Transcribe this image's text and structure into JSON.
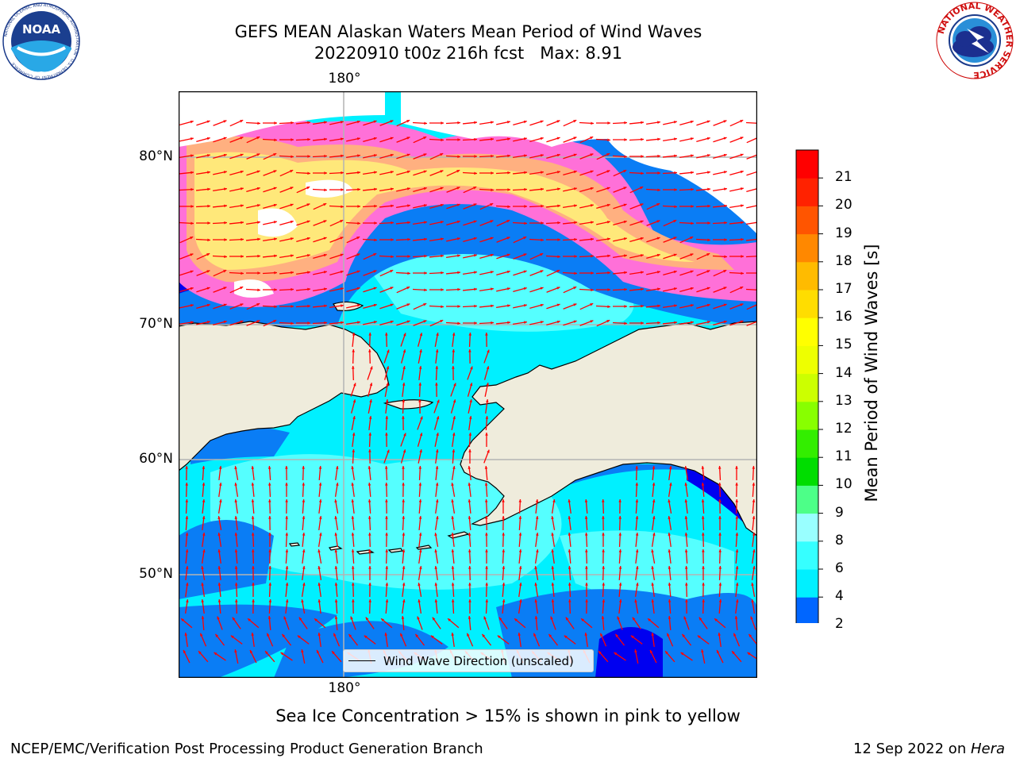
{
  "header": {
    "title_line1": "GEFS MEAN Alaskan Waters Mean Period of Wind Waves",
    "title_line2": "20220910 t00z 216h fcst   Max: 8.91"
  },
  "logos": {
    "noaa_text": "NOAA",
    "noaa_ring_text": "NATIONAL OCEANIC AND ATMOSPHERIC ADMINISTRATION · U.S. DEPARTMENT OF COMMERCE",
    "nws_ring_text": "NATIONAL WEATHER SERVICE"
  },
  "map": {
    "lon_labels": [
      "180°",
      "180°"
    ],
    "lat_labels": [
      "80°N",
      "70°N",
      "60°N",
      "50°N"
    ],
    "legend_label": "Wind Wave Direction (unscaled)",
    "colors": {
      "land": "#efecdc",
      "ocean_low": "#00f0ff",
      "ocean_mid": "#55ffff",
      "ocean_2_4": "#0a7df5",
      "ocean_deep": "#0000f0",
      "ice_pink": "#ff70d8",
      "ice_orange": "#ffb080",
      "ice_yellow": "#ffe87a",
      "arrow": "#ff0000",
      "grid": "#b4b4b4"
    }
  },
  "colorbar": {
    "label": "Mean Period of Wind Waves [s]",
    "ticks": [
      "2",
      "4",
      "6",
      "8",
      "9",
      "10",
      "11",
      "12",
      "13",
      "14",
      "15",
      "16",
      "17",
      "18",
      "19",
      "20",
      "21"
    ],
    "colors": [
      "#0066ff",
      "#00f0ff",
      "#36ffff",
      "#99ffff",
      "#4dff88",
      "#00dd00",
      "#33ee00",
      "#88ff00",
      "#ccff00",
      "#eeff00",
      "#ffff00",
      "#ffdd00",
      "#ffbb00",
      "#ff8800",
      "#ff5500",
      "#ff2200",
      "#ff0000"
    ],
    "extend_color": "#0000ff"
  },
  "notes": {
    "ice_note": "Sea Ice Concentration > 15% is shown in pink to yellow",
    "footer_left": "NCEP/EMC/Verification Post Processing Product Generation Branch",
    "footer_date": "12 Sep 2022 on ",
    "footer_host": "Hera"
  }
}
